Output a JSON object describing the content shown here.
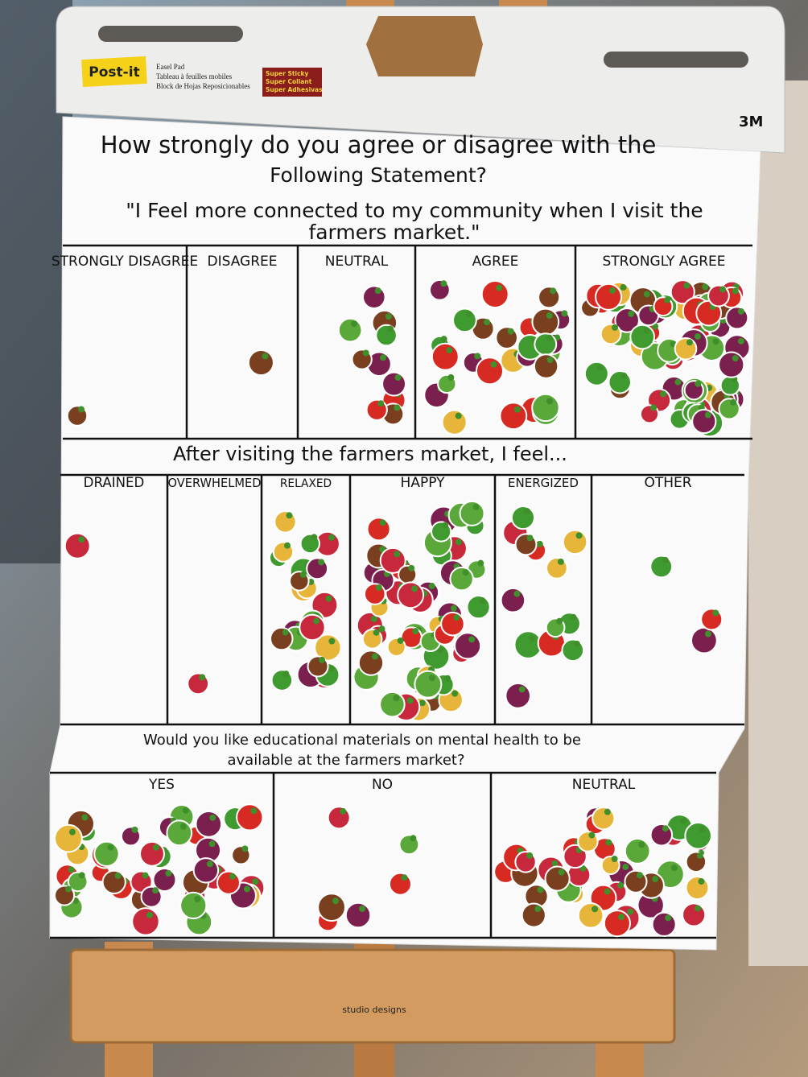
{
  "header": {
    "brand": "Post-it",
    "product": [
      "Easel Pad",
      "Tableau à feuilles mobiles",
      "Block de Hojas Reposicionables"
    ],
    "badge": [
      "Super Sticky",
      "Super Collant",
      "Super Adhesivas"
    ],
    "maker": "3M"
  },
  "sections": [
    {
      "question": [
        "How strongly do you agree or disagree with the",
        "Following Statement?",
        "\"I Feel more connected to my community when I visit the",
        "farmers market.\""
      ],
      "columns": [
        "STRONGLY DISAGREE",
        "DISAGREE",
        "NEUTRAL",
        "AGREE",
        "STRONGLY AGREE"
      ]
    },
    {
      "question": [
        "After visiting the farmers market, I feel..."
      ],
      "columns": [
        "DRAINED",
        "OVERWHELMED",
        "RELAXED",
        "HAPPY",
        "ENERGIZED",
        "OTHER"
      ]
    },
    {
      "question": [
        "Would you like educational materials on mental health to be",
        "available at the farmers market?"
      ],
      "columns": [
        "YES",
        "NO",
        "NEUTRAL"
      ]
    }
  ],
  "easel_brand": "studio designs"
}
